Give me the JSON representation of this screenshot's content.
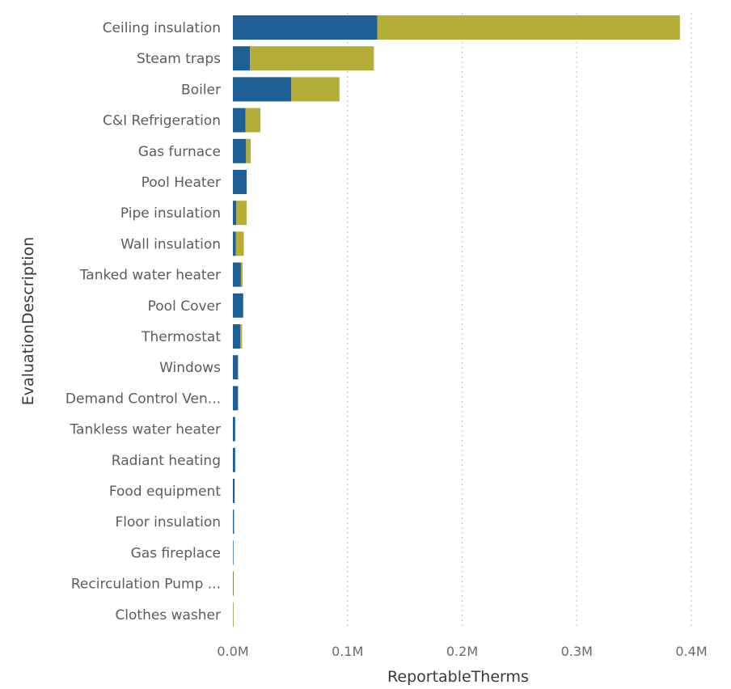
{
  "chart_data": {
    "type": "bar",
    "orientation": "horizontal",
    "stacked": true,
    "xlabel": "ReportableTherms",
    "ylabel": "EvaluationDescription",
    "xlim": [
      0,
      400000
    ],
    "x_ticks": [
      {
        "value": 0,
        "label": "0.0M"
      },
      {
        "value": 100000,
        "label": "0.1M"
      },
      {
        "value": 200000,
        "label": "0.2M"
      },
      {
        "value": 300000,
        "label": "0.3M"
      },
      {
        "value": 400000,
        "label": "0.4M"
      }
    ],
    "grid": true,
    "legend": "none",
    "categories": [
      "Ceiling insulation",
      "Steam traps",
      "Boiler",
      "C&I Refrigeration",
      "Gas furnace",
      "Pool Heater",
      "Pipe insulation",
      "Wall insulation",
      "Tanked water heater",
      "Pool Cover",
      "Thermostat",
      "Windows",
      "Demand Control Ven...",
      "Tankless water heater",
      "Radiant heating",
      "Food equipment",
      "Floor insulation",
      "Gas fireplace",
      "Recirculation Pump ...",
      "Clothes washer"
    ],
    "series": [
      {
        "color": "#1f5f96",
        "values": [
          126000,
          15000,
          51000,
          11000,
          11500,
          12000,
          3000,
          2500,
          7000,
          9000,
          6500,
          4500,
          4500,
          2000,
          2000,
          1500,
          1000,
          500,
          300,
          100
        ]
      },
      {
        "color": "#b4ad37",
        "values": [
          264000,
          108000,
          42000,
          13000,
          4000,
          0,
          9000,
          7000,
          1500,
          0,
          1500,
          0,
          0,
          0,
          0,
          0,
          0,
          0,
          200,
          100
        ]
      }
    ]
  }
}
